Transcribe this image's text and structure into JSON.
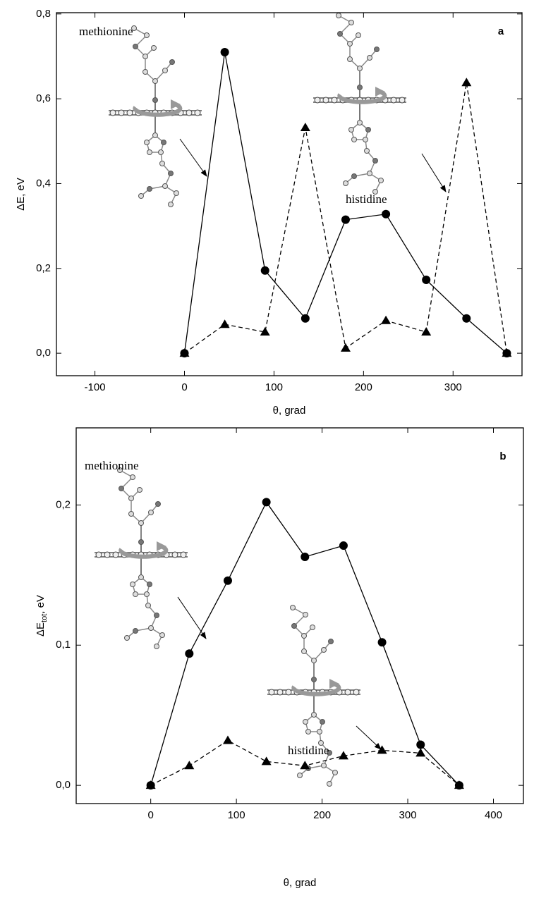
{
  "chart_data": [
    {
      "type": "line",
      "panel_label": "a",
      "xlabel": "θ, grad",
      "ylabel": "ΔE, eV",
      "annotations": [
        "methionine",
        "histidine"
      ],
      "x": [
        0,
        45,
        90,
        135,
        180,
        225,
        270,
        315,
        360
      ],
      "xlim": [
        -143,
        377
      ],
      "xticks": [
        -100,
        0,
        100,
        200,
        300
      ],
      "ylim": [
        -0.053,
        0.803
      ],
      "yticks": [
        {
          "value": 0,
          "label": "0,0"
        },
        {
          "value": 0.2,
          "label": "0,2"
        },
        {
          "value": 0.4,
          "label": "0,4"
        },
        {
          "value": 0.6,
          "label": "0,6"
        },
        {
          "value": 0.8,
          "label": "0,8"
        }
      ],
      "series": [
        {
          "color": "#000000",
          "marker": "circle",
          "dash": false,
          "values": [
            0,
            0.71,
            0.195,
            0.082,
            0.315,
            0.328,
            0.173,
            0.082,
            0
          ]
        },
        {
          "color": "#000000",
          "marker": "triangle",
          "dash": true,
          "values": [
            0,
            0.068,
            0.05,
            0.532,
            0.012,
            0.077,
            0.05,
            0.638,
            0
          ]
        }
      ]
    },
    {
      "type": "line",
      "panel_label": "b",
      "xlabel": "θ, grad",
      "ylabel": [
        "ΔE",
        "tot",
        ", eV"
      ],
      "annotations": [
        "methionine",
        "histidine"
      ],
      "x": [
        0,
        45,
        90,
        135,
        180,
        225,
        270,
        315,
        360
      ],
      "xlim": [
        -87,
        435
      ],
      "xticks": [
        0,
        100,
        200,
        300,
        400
      ],
      "ylim": [
        -0.013,
        0.255
      ],
      "yticks": [
        {
          "value": 0,
          "label": "0,0"
        },
        {
          "value": 0.1,
          "label": "0,1"
        },
        {
          "value": 0.2,
          "label": "0,2"
        }
      ],
      "series": [
        {
          "color": "#000000",
          "marker": "circle",
          "dash": false,
          "values": [
            0,
            0.094,
            0.146,
            0.202,
            0.163,
            0.171,
            0.102,
            0.029,
            0
          ]
        },
        {
          "color": "#000000",
          "marker": "triangle",
          "dash": true,
          "values": [
            0,
            0.014,
            0.032,
            0.017,
            0.014,
            0.021,
            0.025,
            0.023,
            0
          ]
        }
      ]
    }
  ]
}
